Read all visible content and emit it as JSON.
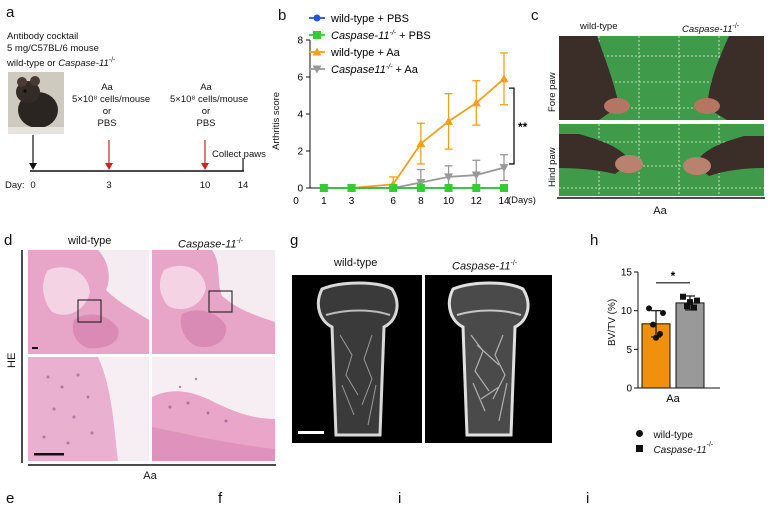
{
  "panels": {
    "a": "a",
    "b": "b",
    "c": "c",
    "d": "d",
    "g": "g",
    "h": "h",
    "e": "e",
    "f": "f",
    "i1": "i",
    "i2": "i"
  },
  "panel_a": {
    "cocktail_line1": "Antibody cocktail",
    "cocktail_line2": "5 mg/C57BL/6 mouse",
    "cocktail_line3_prefix": "wild-type or ",
    "cocktail_line3_italic": "Caspase-11",
    "cocktail_line3_sup": "-/-",
    "inj1": [
      "Aa",
      "5×10⁸ cells/mouse",
      "or",
      "PBS"
    ],
    "inj2": [
      "Aa",
      "5×10⁸ cells/mouse",
      "or",
      "PBS"
    ],
    "collect": "Collect paws",
    "day_label": "Day:",
    "days": [
      "0",
      "3",
      "10",
      "14"
    ]
  },
  "chart_data": [
    {
      "type": "line",
      "ylabel": "Arthritis score",
      "xlabel_unit": "(Days)",
      "x": [
        1,
        3,
        6,
        8,
        10,
        12,
        14
      ],
      "x_ticks": [
        "0",
        "1",
        "3",
        "6",
        "8",
        "10",
        "12",
        "14"
      ],
      "ylim": [
        0,
        8
      ],
      "y_ticks": [
        "0",
        "2",
        "4",
        "6",
        "8"
      ],
      "significance": "**",
      "series": [
        {
          "name": "wild-type + PBS",
          "color": "#2255dd",
          "marker": "circle",
          "values": [
            0,
            0,
            0,
            0,
            0,
            0,
            0
          ],
          "err": [
            0,
            0,
            0,
            0,
            0,
            0,
            0
          ]
        },
        {
          "name": "Caspase-11-/- + PBS",
          "color": "#33cc33",
          "marker": "square",
          "values": [
            0,
            0,
            0,
            0,
            0,
            0,
            0
          ],
          "err": [
            0,
            0,
            0,
            0,
            0,
            0,
            0
          ]
        },
        {
          "name": "wild-type + Aa",
          "color": "#f0a020",
          "marker": "triangle",
          "values": [
            0,
            0,
            0.2,
            2.4,
            3.6,
            4.6,
            5.9
          ],
          "err": [
            0,
            0,
            0.4,
            1.1,
            1.5,
            1.2,
            1.4
          ]
        },
        {
          "name": "Caspase11-/- + Aa",
          "color": "#999999",
          "marker": "triangle-down",
          "values": [
            0,
            0,
            0,
            0.3,
            0.6,
            0.7,
            1.1
          ],
          "err": [
            0,
            0,
            0,
            0.7,
            0.6,
            0.8,
            0.7
          ]
        }
      ],
      "legend": [
        {
          "pre": "wild-type + PBS",
          "it": "",
          "sup": "",
          "post": ""
        },
        {
          "pre": "",
          "it": "Caspase-11",
          "sup": "-/-",
          "post": " + PBS"
        },
        {
          "pre": "wild-type + Aa",
          "it": "",
          "sup": "",
          "post": ""
        },
        {
          "pre": "",
          "it": "Caspase11",
          "sup": "-/-",
          "post": " + Aa"
        }
      ]
    },
    {
      "type": "bar",
      "categories": [
        "Aa"
      ],
      "ylabel": "BV/TV (%)",
      "ylim": [
        0,
        15
      ],
      "y_ticks": [
        "0",
        "5",
        "10",
        "15"
      ],
      "significance": "*",
      "series": [
        {
          "name": "wild-type",
          "color": "#f0900c",
          "value": 8.3,
          "err": 1.7,
          "points": [
            10.3,
            9.7,
            8.2,
            7.0,
            6.5
          ]
        },
        {
          "name": "Caspase-11-/-",
          "color": "#999999",
          "value": 11.0,
          "err": 0.9,
          "points": [
            11.8,
            11.3,
            10.6,
            10.4,
            11.1
          ]
        }
      ],
      "legend": [
        {
          "pre": "wild-type",
          "it": "",
          "sup": ""
        },
        {
          "pre": "",
          "it": "Caspase-11",
          "sup": "-/-"
        }
      ]
    }
  ],
  "panel_c": {
    "col1": "wild-type",
    "col2_italic": "Caspase-11",
    "col2_sup": "-/-",
    "row1": "Fore paw",
    "row2": "Hind paw",
    "bottom": "Aa"
  },
  "panel_d": {
    "col1": "wild-type",
    "col2_italic": "Caspase-11",
    "col2_sup": "-/-",
    "row": "HE",
    "bottom": "Aa"
  },
  "panel_g": {
    "col1": "wild-type",
    "col2_italic": "Caspase-11",
    "col2_sup": "-/-"
  },
  "colors": {
    "photo_green": "#3f9a4a",
    "he_pink": "#e8a6c8",
    "arrow_red": "#cc2222"
  }
}
